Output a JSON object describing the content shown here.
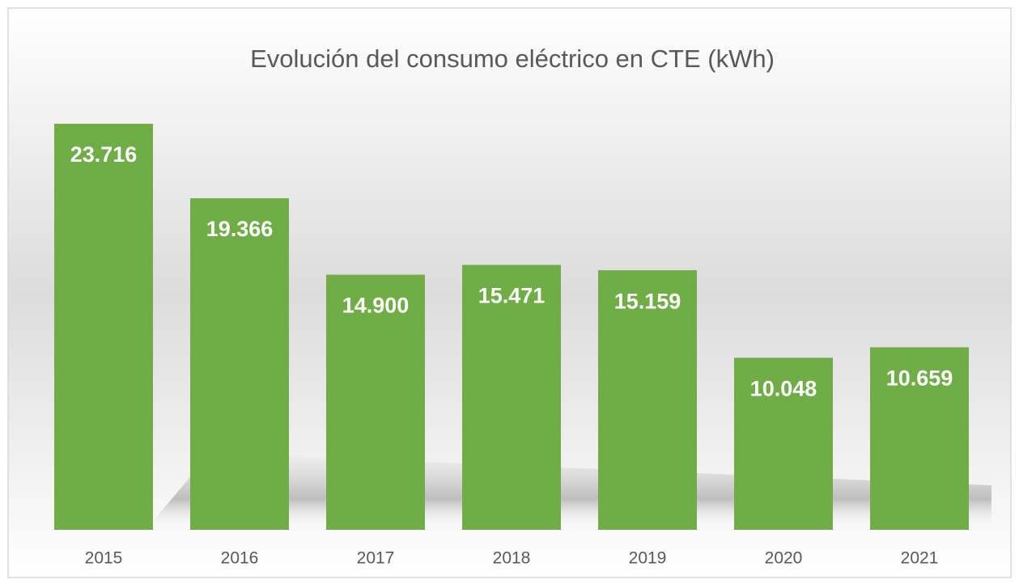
{
  "chart_data": {
    "type": "bar",
    "title": "Evolución del consumo eléctrico en CTE (kWh)",
    "categories": [
      "2015",
      "2016",
      "2017",
      "2018",
      "2019",
      "2020",
      "2021"
    ],
    "values": [
      23716,
      19366,
      14900,
      15471,
      15159,
      10048,
      10659
    ],
    "value_labels": [
      "23.716",
      "19.366",
      "14.900",
      "15.471",
      "15.159",
      "10.048",
      "10.659"
    ],
    "color": "#70ad47"
  }
}
